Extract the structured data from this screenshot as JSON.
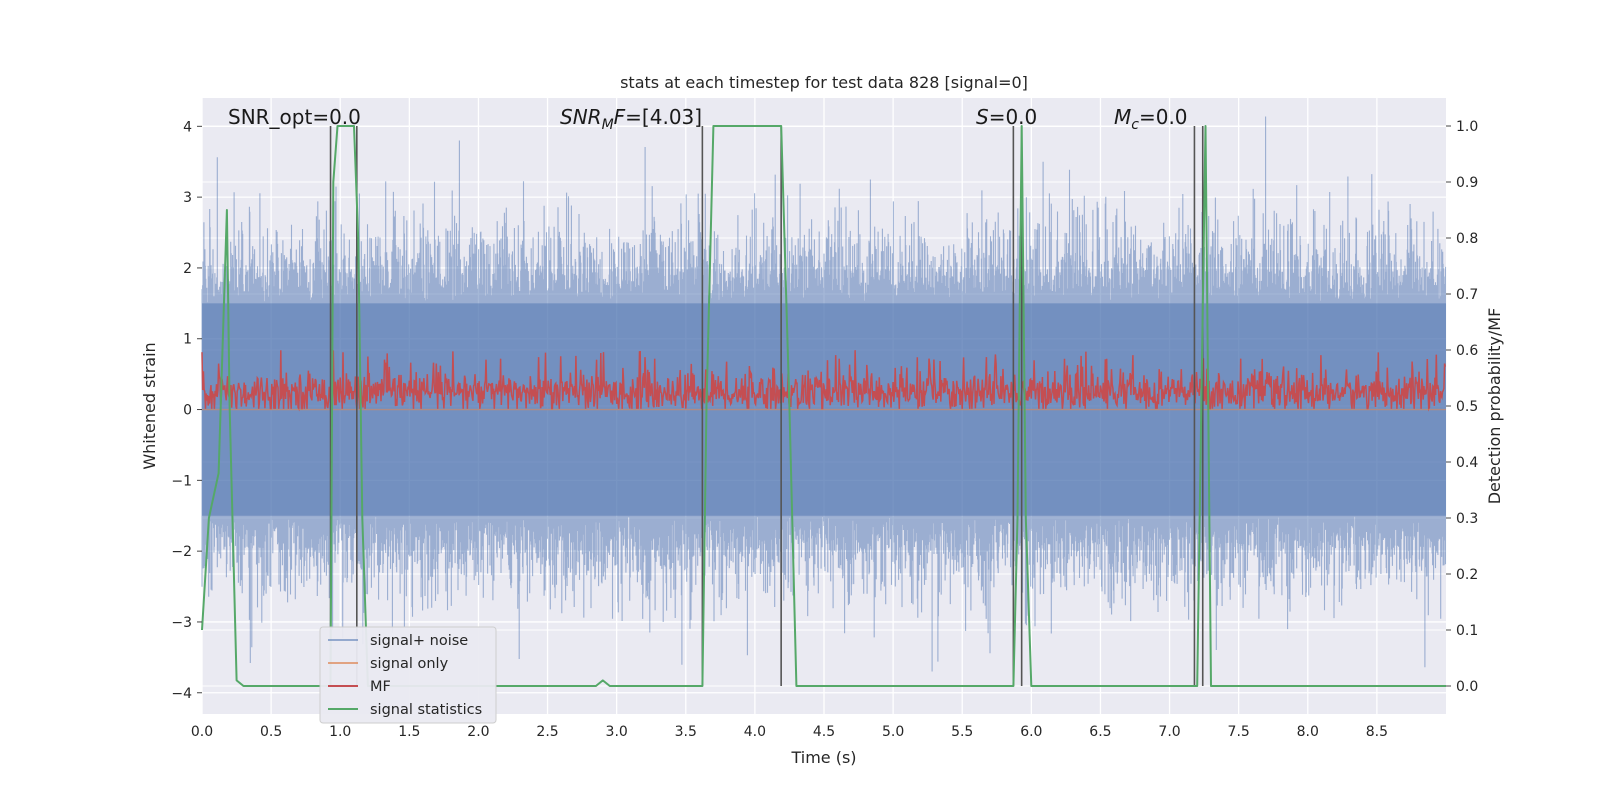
{
  "chart_data": {
    "type": "line",
    "title": "stats at each timestep for test data 828 [signal=0]",
    "xlabel": "Time (s)",
    "ylabel": "Whitened strain",
    "y2label": "Detection probability/MF",
    "xlim": [
      0,
      9.0
    ],
    "ylim": [
      -4.3,
      4.4
    ],
    "y2lim": [
      -0.05,
      1.05
    ],
    "xticks": [
      0.0,
      0.5,
      1.0,
      1.5,
      2.0,
      2.5,
      3.0,
      3.5,
      4.0,
      4.5,
      5.0,
      5.5,
      6.0,
      6.5,
      7.0,
      7.5,
      8.0,
      8.5
    ],
    "xtick_labels": [
      "0.0",
      "0.5",
      "1.0",
      "1.5",
      "2.0",
      "2.5",
      "3.0",
      "3.5",
      "4.0",
      "4.5",
      "5.0",
      "5.5",
      "6.0",
      "6.5",
      "7.0",
      "7.5",
      "8.0",
      "8.5"
    ],
    "yticks": [
      4,
      3,
      2,
      1,
      0,
      -1,
      -2,
      -3,
      -4
    ],
    "ytick_labels": [
      "4",
      "3",
      "2",
      "1",
      "0",
      "−1",
      "−2",
      "−3",
      "−4"
    ],
    "y2ticks": [
      1.0,
      0.9,
      0.8,
      0.7,
      0.6,
      0.5,
      0.4,
      0.3,
      0.2,
      0.1,
      0.0
    ],
    "y2tick_labels": [
      "1.0",
      "0.9",
      "0.8",
      "0.7",
      "0.6",
      "0.5",
      "0.4",
      "0.3",
      "0.2",
      "0.1",
      "0.0"
    ],
    "grid": true,
    "legend_position": "lower-left",
    "legend": [
      {
        "name": "signal+ noise",
        "color": "#4c72b0"
      },
      {
        "name": "signal only",
        "color": "#dd8452"
      },
      {
        "name": "MF",
        "color": "#c44e52"
      },
      {
        "name": "signal statistics",
        "color": "#55a868"
      }
    ],
    "annotations": [
      {
        "text": "SNR_opt=0.0",
        "x": 0.2,
        "y": 4.1
      },
      {
        "text": "SNR_MF=[4.03]",
        "x": 2.6,
        "y": 4.1
      },
      {
        "text": "S=0.0",
        "x": 5.6,
        "y": 4.1
      },
      {
        "text": "M_c=0.0",
        "x": 6.6,
        "y": 4.1
      }
    ],
    "series": [
      {
        "name": "signal+ noise",
        "kind": "noise",
        "color": "#4c72b0",
        "envelope_low": -2.3,
        "envelope_high": 2.2,
        "core_low": -1.5,
        "core_high": 1.5,
        "peak_max": 3.8,
        "trough_min": -3.7
      },
      {
        "name": "signal only",
        "color": "#dd8452",
        "values_constant": 0.0
      },
      {
        "name": "MF",
        "kind": "noise",
        "color": "#c44e52",
        "axis": "right",
        "base_low": 0.5,
        "base_high": 0.55,
        "peak_max": 0.6
      },
      {
        "name": "signal statistics",
        "color": "#55a868",
        "axis": "right",
        "x": [
          0.0,
          0.05,
          0.12,
          0.18,
          0.2,
          0.25,
          0.3,
          0.6,
          0.9,
          0.93,
          0.95,
          0.98,
          1.05,
          1.1,
          1.13,
          1.16,
          1.2,
          1.5,
          2.0,
          2.5,
          2.75,
          2.85,
          2.9,
          2.95,
          3.2,
          3.5,
          3.62,
          3.65,
          3.7,
          3.9,
          4.19,
          4.25,
          4.3,
          4.5,
          5.0,
          5.5,
          5.87,
          5.9,
          5.93,
          5.96,
          6.0,
          6.5,
          7.0,
          7.2,
          7.23,
          7.26,
          7.3,
          7.5,
          8.0,
          8.5,
          9.0
        ],
        "y": [
          0.1,
          0.3,
          0.38,
          0.85,
          0.5,
          0.01,
          0.0,
          0.0,
          0.0,
          0.0,
          0.9,
          1.0,
          1.0,
          1.0,
          0.8,
          0.3,
          0.0,
          0.0,
          0.0,
          0.0,
          0.0,
          0.0,
          0.01,
          0.0,
          0.0,
          0.0,
          0.0,
          0.5,
          1.0,
          1.0,
          1.0,
          0.5,
          0.0,
          0.0,
          0.0,
          0.0,
          0.0,
          0.3,
          1.0,
          0.3,
          0.0,
          0.0,
          0.0,
          0.0,
          0.5,
          1.0,
          0.0,
          0.0,
          0.0,
          0.0,
          0.0
        ]
      }
    ],
    "vertical_lines_x": [
      0.93,
      1.12,
      3.62,
      4.19,
      5.87,
      5.93,
      7.18,
      7.24
    ]
  }
}
